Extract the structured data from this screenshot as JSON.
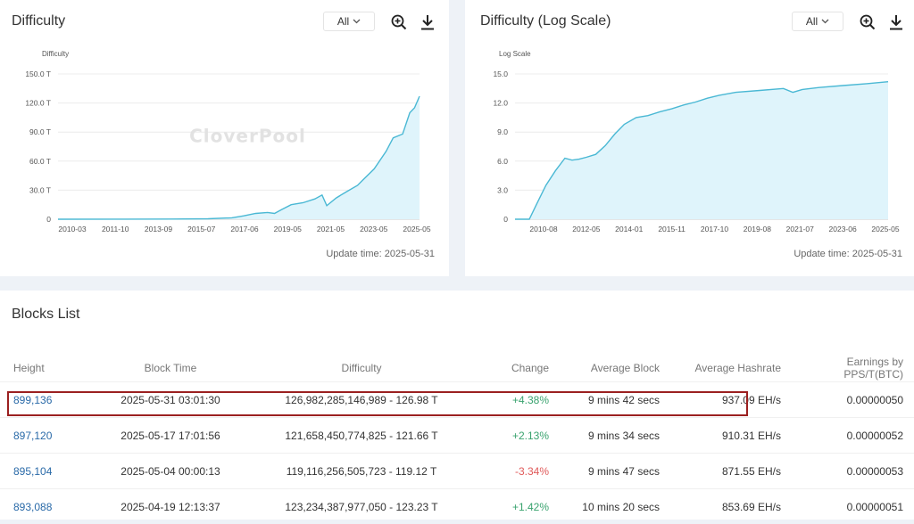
{
  "charts": [
    {
      "id": "left",
      "title": "Difficulty",
      "range_value": "All",
      "update_time": "Update time: 2025-05-31",
      "watermark": "CloverPool",
      "colors": {
        "line": "#4ab8d4",
        "fill": "#dff4fb",
        "grid": "#ececec"
      },
      "chart_data": {
        "type": "area",
        "ylabel": "Difficulty",
        "yticks": [
          "0",
          "30.0 T",
          "60.0 T",
          "90.0 T",
          "120.0 T",
          "150.0 T"
        ],
        "ylim": [
          0,
          150
        ],
        "xticks": [
          "2010-03",
          "2011-10",
          "2013-09",
          "2015-07",
          "2017-06",
          "2019-05",
          "2021-05",
          "2023-05",
          "2025-05"
        ],
        "xlim": [
          2010.17,
          2025.41
        ],
        "x": [
          2010.17,
          2013.0,
          2015.0,
          2016.5,
          2017.5,
          2018.0,
          2018.5,
          2019.0,
          2019.3,
          2019.6,
          2020.0,
          2020.5,
          2021.0,
          2021.3,
          2021.5,
          2021.9,
          2022.3,
          2022.8,
          2023.0,
          2023.5,
          2024.0,
          2024.3,
          2024.7,
          2025.0,
          2025.2,
          2025.41
        ],
        "values": [
          0,
          0.1,
          0.2,
          0.5,
          1.5,
          3.5,
          6,
          7,
          6,
          10,
          15,
          17,
          21,
          25,
          14,
          22,
          28,
          35,
          40,
          52,
          70,
          84,
          88,
          110,
          115,
          127
        ]
      }
    },
    {
      "id": "right",
      "title": "Difficulty (Log Scale)",
      "range_value": "All",
      "update_time": "Update time: 2025-05-31",
      "watermark": "CloverPool",
      "colors": {
        "line": "#4ab8d4",
        "fill": "#dff4fb",
        "grid": "#ececec"
      },
      "chart_data": {
        "type": "area",
        "ylabel": "Log Scale",
        "yticks": [
          "0",
          "3.0",
          "6.0",
          "9.0",
          "12.0",
          "15.0"
        ],
        "ylim": [
          0,
          15
        ],
        "xticks": [
          "2010-08",
          "2012-05",
          "2014-01",
          "2015-11",
          "2017-10",
          "2019-08",
          "2021-07",
          "2023-06",
          "2025-05"
        ],
        "xlim": [
          2009.7,
          2025.41
        ],
        "x": [
          2009.7,
          2010.3,
          2010.6,
          2011.0,
          2011.4,
          2011.8,
          2012.1,
          2012.4,
          2012.7,
          2013.1,
          2013.5,
          2013.9,
          2014.3,
          2014.8,
          2015.3,
          2015.8,
          2016.3,
          2016.8,
          2017.3,
          2017.8,
          2018.3,
          2019.0,
          2020.0,
          2021.0,
          2021.4,
          2021.8,
          2022.5,
          2023.5,
          2024.5,
          2025.41
        ],
        "values": [
          0,
          0,
          1.5,
          3.5,
          5,
          6.3,
          6.1,
          6.2,
          6.4,
          6.7,
          7.6,
          8.8,
          9.8,
          10.5,
          10.7,
          11.1,
          11.4,
          11.8,
          12.1,
          12.5,
          12.8,
          13.1,
          13.3,
          13.5,
          13.1,
          13.4,
          13.6,
          13.8,
          14.0,
          14.2
        ]
      }
    }
  ],
  "blocks": {
    "title": "Blocks List",
    "columns": [
      "Height",
      "Block Time",
      "Difficulty",
      "Change",
      "Average Block",
      "Average Hashrate",
      "Earnings by PPS/T(BTC)"
    ],
    "rows": [
      {
        "height": "899,136",
        "time": "2025-05-31 03:01:30",
        "difficulty": "126,982,285,146,989 - 126.98 T",
        "change": "+4.38%",
        "avg_block": "9 mins 42 secs",
        "hashrate": "937.09 EH/s",
        "earnings": "0.00000050"
      },
      {
        "height": "897,120",
        "time": "2025-05-17 17:01:56",
        "difficulty": "121,658,450,774,825 - 121.66 T",
        "change": "+2.13%",
        "avg_block": "9 mins 34 secs",
        "hashrate": "910.31 EH/s",
        "earnings": "0.00000052"
      },
      {
        "height": "895,104",
        "time": "2025-05-04 00:00:13",
        "difficulty": "119,116,256,505,723 - 119.12 T",
        "change": "-3.34%",
        "avg_block": "9 mins 47 secs",
        "hashrate": "871.55 EH/s",
        "earnings": "0.00000053"
      },
      {
        "height": "893,088",
        "time": "2025-04-19 12:13:37",
        "difficulty": "123,234,387,977,050 - 123.23 T",
        "change": "+1.42%",
        "avg_block": "10 mins 20 secs",
        "hashrate": "853.69 EH/s",
        "earnings": "0.00000051"
      }
    ]
  },
  "icons": {
    "zoom": "zoom-in-icon",
    "download": "download-icon",
    "dropdown": "chevron-down-icon"
  }
}
